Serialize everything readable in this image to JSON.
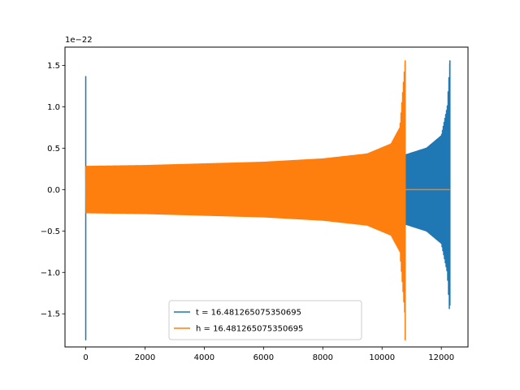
{
  "chart_data": {
    "type": "line",
    "title": "",
    "xlabel": "",
    "ylabel": "",
    "y_offset_text": "1e−22",
    "xlim": [
      -700,
      12900
    ],
    "ylim": [
      -1.9,
      1.72
    ],
    "x_ticks": [
      0,
      2000,
      4000,
      6000,
      8000,
      10000,
      12000
    ],
    "x_tick_labels": [
      "0",
      "2000",
      "4000",
      "6000",
      "8000",
      "10000",
      "12000"
    ],
    "y_ticks": [
      -1.5,
      -1.0,
      -0.5,
      0.0,
      0.5,
      1.0,
      1.5
    ],
    "y_tick_labels": [
      "−1.5",
      "−1.0",
      "−0.5",
      "0.0",
      "0.5",
      "1.0",
      "1.5"
    ],
    "grid": false,
    "legend_position": "lower-center",
    "series": [
      {
        "name": "t = 16.481265075350695",
        "color": "#1f77b4",
        "description": "oscillating chirp signal, envelope grows toward merger",
        "x_start": 0,
        "x_end": 12290,
        "envelope": [
          [
            0,
            0.26
          ],
          [
            2000,
            0.27
          ],
          [
            4000,
            0.28
          ],
          [
            6000,
            0.3
          ],
          [
            8000,
            0.33
          ],
          [
            10000,
            0.38
          ],
          [
            10800,
            0.42
          ],
          [
            11500,
            0.5
          ],
          [
            12000,
            0.65
          ],
          [
            12200,
            1.0
          ],
          [
            12290,
            1.56
          ]
        ],
        "spikes": [
          {
            "x": 0,
            "max": 1.37,
            "min": -1.82
          },
          {
            "x": 12290,
            "max": 1.56,
            "min": -1.4
          }
        ]
      },
      {
        "name": "h = 16.481265075350695",
        "color": "#ff7f0e",
        "description": "oscillating chirp signal ending near x=10780, then flat zero",
        "x_start": 0,
        "x_end": 10780,
        "flat_zero_until": 12290,
        "envelope": [
          [
            0,
            0.28
          ],
          [
            2000,
            0.29
          ],
          [
            4000,
            0.31
          ],
          [
            6000,
            0.33
          ],
          [
            8000,
            0.37
          ],
          [
            9500,
            0.43
          ],
          [
            10300,
            0.55
          ],
          [
            10600,
            0.75
          ],
          [
            10780,
            1.56
          ]
        ],
        "spikes": [
          {
            "x": 10780,
            "max": 1.56,
            "min": -1.82
          }
        ]
      }
    ]
  }
}
